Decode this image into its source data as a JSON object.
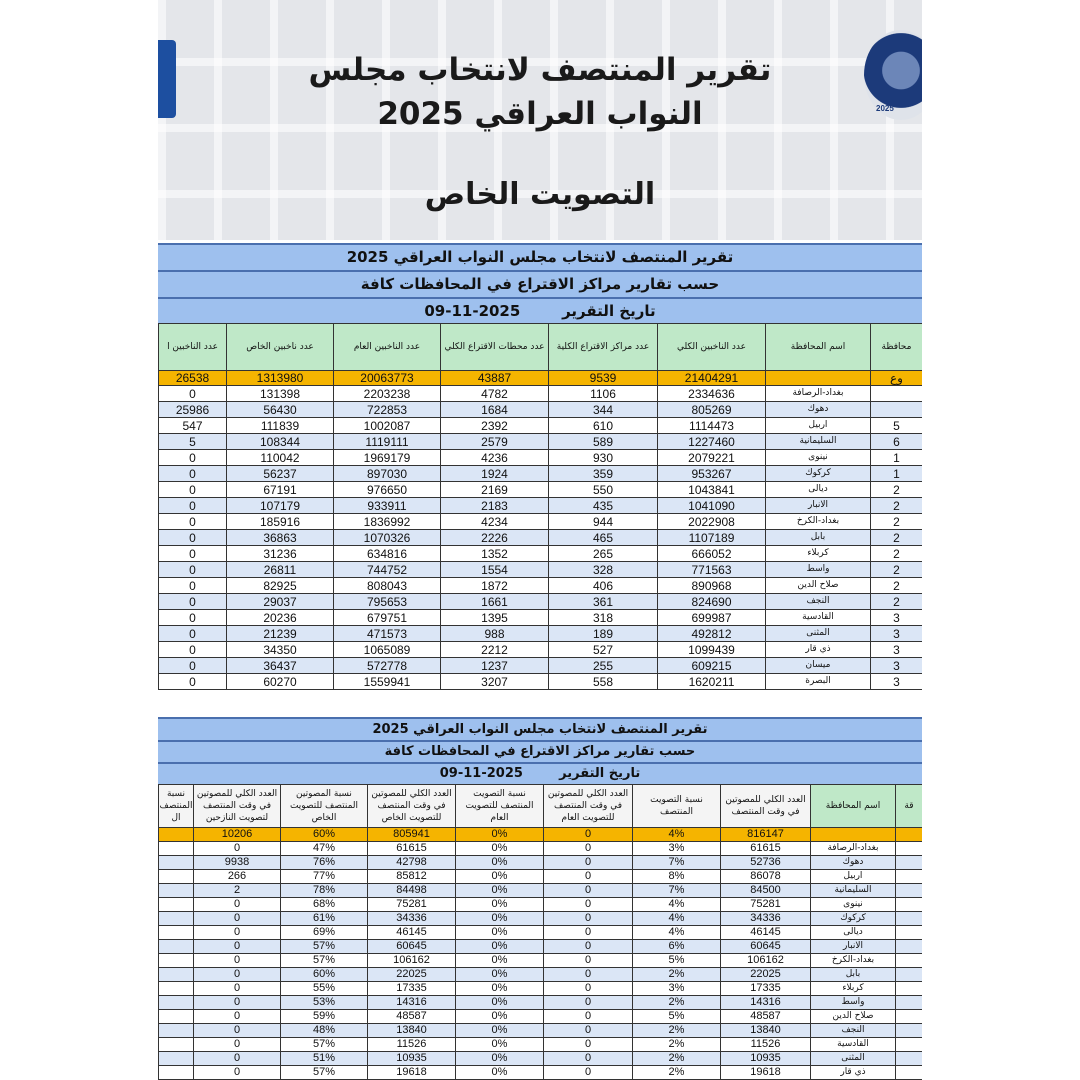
{
  "banner": {
    "title_line1": "تقرير المنتصف لانتخاب مجلس",
    "title_line2": "النواب العراقي 2025",
    "subtitle": "التصويت الخاص",
    "logo_right_year": "2025"
  },
  "colors": {
    "title_bar": "#9ec0ee",
    "header_cell": "#bfe8c8",
    "total_row": "#f5b400",
    "alt_row": "#dbe6f6"
  },
  "table1": {
    "title": "تقرير المنتصف لانتخاب مجلس النواب العراقي 2025",
    "subtitle": "حسب تقارير مراكز الاقتراع في المحافظات كافة",
    "date_label": "تاريخ التقرير",
    "date": "2025-11-09",
    "headers": [
      "محافظة",
      "اسم المحافظة",
      "عدد الناخبين الكلي",
      "عدد مراكز الاقتراع الكلية",
      "عدد محطات الاقتراع الكلي",
      "عدد الناخبين العام",
      "عدد ناخبين الخاص",
      "عدد الناخبين ا"
    ],
    "total": [
      "وع",
      "",
      "21404291",
      "9539",
      "43887",
      "20063773",
      "1313980",
      "26538"
    ],
    "rows": [
      [
        "",
        "بغداد-الرصافة",
        "2334636",
        "1106",
        "4782",
        "2203238",
        "131398",
        "0"
      ],
      [
        "",
        "دهوك",
        "805269",
        "344",
        "1684",
        "722853",
        "56430",
        "25986"
      ],
      [
        "5",
        "اربيل",
        "1114473",
        "610",
        "2392",
        "1002087",
        "111839",
        "547"
      ],
      [
        "6",
        "السليمانية",
        "1227460",
        "589",
        "2579",
        "1119111",
        "108344",
        "5"
      ],
      [
        "1",
        "نينوى",
        "2079221",
        "930",
        "4236",
        "1969179",
        "110042",
        "0"
      ],
      [
        "1",
        "كركوك",
        "953267",
        "359",
        "1924",
        "897030",
        "56237",
        "0"
      ],
      [
        "2",
        "ديالى",
        "1043841",
        "550",
        "2169",
        "976650",
        "67191",
        "0"
      ],
      [
        "2",
        "الانبار",
        "1041090",
        "435",
        "2183",
        "933911",
        "107179",
        "0"
      ],
      [
        "2",
        "بغداد-الكرخ",
        "2022908",
        "944",
        "4234",
        "1836992",
        "185916",
        "0"
      ],
      [
        "2",
        "بابل",
        "1107189",
        "465",
        "2226",
        "1070326",
        "36863",
        "0"
      ],
      [
        "2",
        "كربلاء",
        "666052",
        "265",
        "1352",
        "634816",
        "31236",
        "0"
      ],
      [
        "2",
        "واسط",
        "771563",
        "328",
        "1554",
        "744752",
        "26811",
        "0"
      ],
      [
        "2",
        "صلاح الدين",
        "890968",
        "406",
        "1872",
        "808043",
        "82925",
        "0"
      ],
      [
        "2",
        "النجف",
        "824690",
        "361",
        "1661",
        "795653",
        "29037",
        "0"
      ],
      [
        "3",
        "القادسية",
        "699987",
        "318",
        "1395",
        "679751",
        "20236",
        "0"
      ],
      [
        "3",
        "المثنى",
        "492812",
        "189",
        "988",
        "471573",
        "21239",
        "0"
      ],
      [
        "3",
        "ذي قار",
        "1099439",
        "527",
        "2212",
        "1065089",
        "34350",
        "0"
      ],
      [
        "3",
        "ميسان",
        "609215",
        "255",
        "1237",
        "572778",
        "36437",
        "0"
      ],
      [
        "3",
        "البصرة",
        "1620211",
        "558",
        "3207",
        "1559941",
        "60270",
        "0"
      ]
    ]
  },
  "table2": {
    "title": "تقرير المنتصف لانتخاب مجلس النواب العراقي 2025",
    "subtitle": "حسب تقارير مراكز الاقتراع في المحافظات كافة",
    "date_label": "تاريخ التقرير",
    "date": "2025-11-09",
    "headers": [
      "قة",
      "اسم المحافظة",
      "العدد الكلي للمصوتين في وقت المنتصف",
      "نسبة التصويت المنتصف",
      "العدد الكلي للمصوتين في وقت المنتصف للتصويت العام",
      "نسبة التصويت المنتصف للتصويت العام",
      "العدد الكلي للمصوتين في وقت المنتصف للتصويت الخاص",
      "نسبة المصوتين المنتصف للتصويت الخاص",
      "العدد الكلي للمصوتين في وقت المنتصف لتصويت النازحين",
      "نسبة المنتصف ال"
    ],
    "total": [
      "",
      "",
      "816147",
      "4%",
      "0",
      "0%",
      "805941",
      "60%",
      "10206",
      ""
    ],
    "rows": [
      [
        "",
        "بغداد-الرصافة",
        "61615",
        "3%",
        "0",
        "0%",
        "61615",
        "47%",
        "0",
        ""
      ],
      [
        "",
        "دهوك",
        "52736",
        "7%",
        "0",
        "0%",
        "42798",
        "76%",
        "9938",
        ""
      ],
      [
        "",
        "اربيل",
        "86078",
        "8%",
        "0",
        "0%",
        "85812",
        "77%",
        "266",
        ""
      ],
      [
        "",
        "السليمانية",
        "84500",
        "7%",
        "0",
        "0%",
        "84498",
        "78%",
        "2",
        ""
      ],
      [
        "",
        "نينوى",
        "75281",
        "4%",
        "0",
        "0%",
        "75281",
        "68%",
        "0",
        ""
      ],
      [
        "",
        "كركوك",
        "34336",
        "4%",
        "0",
        "0%",
        "34336",
        "61%",
        "0",
        ""
      ],
      [
        "",
        "ديالى",
        "46145",
        "4%",
        "0",
        "0%",
        "46145",
        "69%",
        "0",
        ""
      ],
      [
        "",
        "الانبار",
        "60645",
        "6%",
        "0",
        "0%",
        "60645",
        "57%",
        "0",
        ""
      ],
      [
        "",
        "بغداد-الكرخ",
        "106162",
        "5%",
        "0",
        "0%",
        "106162",
        "57%",
        "0",
        ""
      ],
      [
        "",
        "بابل",
        "22025",
        "2%",
        "0",
        "0%",
        "22025",
        "60%",
        "0",
        ""
      ],
      [
        "",
        "كربلاء",
        "17335",
        "3%",
        "0",
        "0%",
        "17335",
        "55%",
        "0",
        ""
      ],
      [
        "",
        "واسط",
        "14316",
        "2%",
        "0",
        "0%",
        "14316",
        "53%",
        "0",
        ""
      ],
      [
        "",
        "صلاح الدين",
        "48587",
        "5%",
        "0",
        "0%",
        "48587",
        "59%",
        "0",
        ""
      ],
      [
        "",
        "النجف",
        "13840",
        "2%",
        "0",
        "0%",
        "13840",
        "48%",
        "0",
        ""
      ],
      [
        "",
        "القادسية",
        "11526",
        "2%",
        "0",
        "0%",
        "11526",
        "57%",
        "0",
        ""
      ],
      [
        "",
        "المثنى",
        "10935",
        "2%",
        "0",
        "0%",
        "10935",
        "51%",
        "0",
        ""
      ],
      [
        "",
        "ذي قار",
        "19618",
        "2%",
        "0",
        "0%",
        "19618",
        "57%",
        "0",
        ""
      ]
    ]
  }
}
